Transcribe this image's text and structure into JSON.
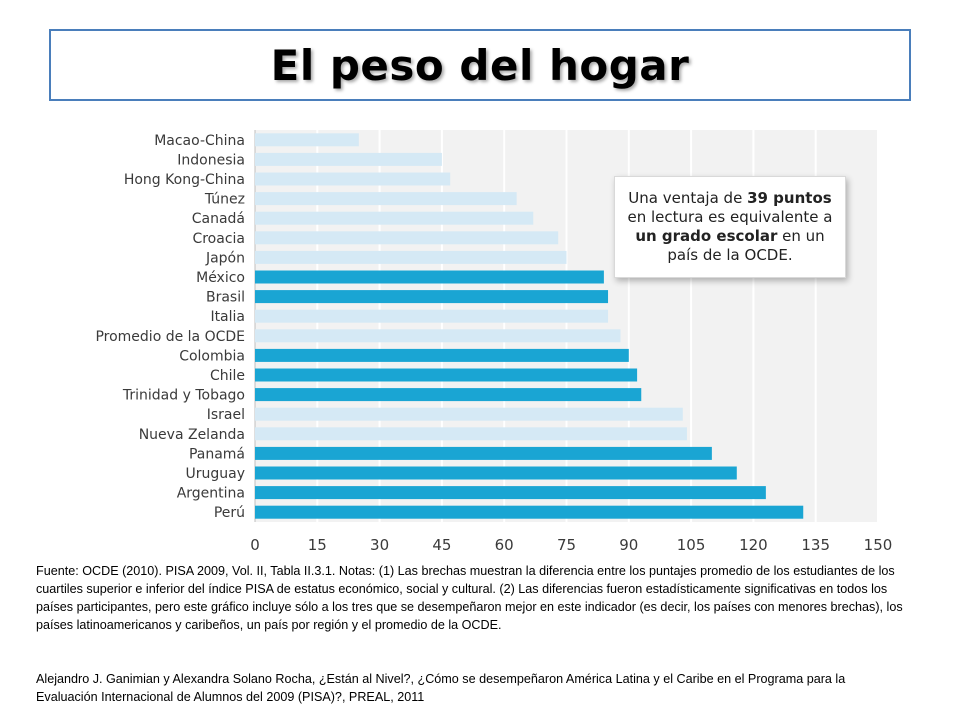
{
  "title": "El peso del hogar",
  "callout": {
    "prefix": "Una ventaja de ",
    "bold1": "39 puntos",
    "middle": " en lectura es equivalente a ",
    "bold2": "un grado escolar",
    "suffix": " en un país de la OCDE."
  },
  "footnote": "Fuente: OCDE (2010). PISA 2009, Vol. II, Tabla II.3.1. Notas: (1) Las brechas muestran la diferencia entre los puntajes promedio de los estudiantes de los cuartiles superior e inferior del índice PISA de estatus económico, social y cultural. (2) Las diferencias fueron estadísticamente significativas en todos los países participantes, pero este gráfico incluye sólo a los tres que se desempeñaron mejor en este indicador (es decir, los países con menores brechas), los países latinoamericanos y caribeños, un país por región y el promedio de la OCDE.",
  "credit": "Alejandro J. Ganimian y Alexandra Solano Rocha, ¿Están al Nivel?, ¿Cómo se desempeñaron América Latina y el Caribe en el Programa para la Evaluación Internacional de Alumnos del 2009 (PISA)?, PREAL, 2011",
  "colors": {
    "latam": "#1aa5d3",
    "other": "#d5e9f5",
    "plot_bg": "#f2f2f2",
    "grid": "#ffffff",
    "label": "#3a3a3a",
    "title_border": "#4a7ebb"
  },
  "chart_data": {
    "type": "bar",
    "orientation": "horizontal",
    "categories": [
      "Macao-China",
      "Indonesia",
      "Hong Kong-China",
      "Túnez",
      "Canadá",
      "Croacia",
      "Japón",
      "México",
      "Brasil",
      "Italia",
      "Promedio de la OCDE",
      "Colombia",
      "Chile",
      "Trinidad y Tobago",
      "Israel",
      "Nueva Zelanda",
      "Panamá",
      "Uruguay",
      "Argentina",
      "Perú"
    ],
    "values": [
      25,
      45,
      47,
      63,
      67,
      73,
      75,
      84,
      85,
      85,
      88,
      90,
      92,
      93,
      103,
      104,
      110,
      116,
      123,
      132
    ],
    "group": [
      "other",
      "other",
      "other",
      "other",
      "other",
      "other",
      "other",
      "latam",
      "latam",
      "other",
      "other",
      "latam",
      "latam",
      "latam",
      "other",
      "other",
      "latam",
      "latam",
      "latam",
      "latam"
    ],
    "xlim": [
      0,
      150
    ],
    "xticks": [
      0,
      15,
      30,
      45,
      60,
      75,
      90,
      105,
      120,
      135,
      150
    ],
    "grid": true
  }
}
